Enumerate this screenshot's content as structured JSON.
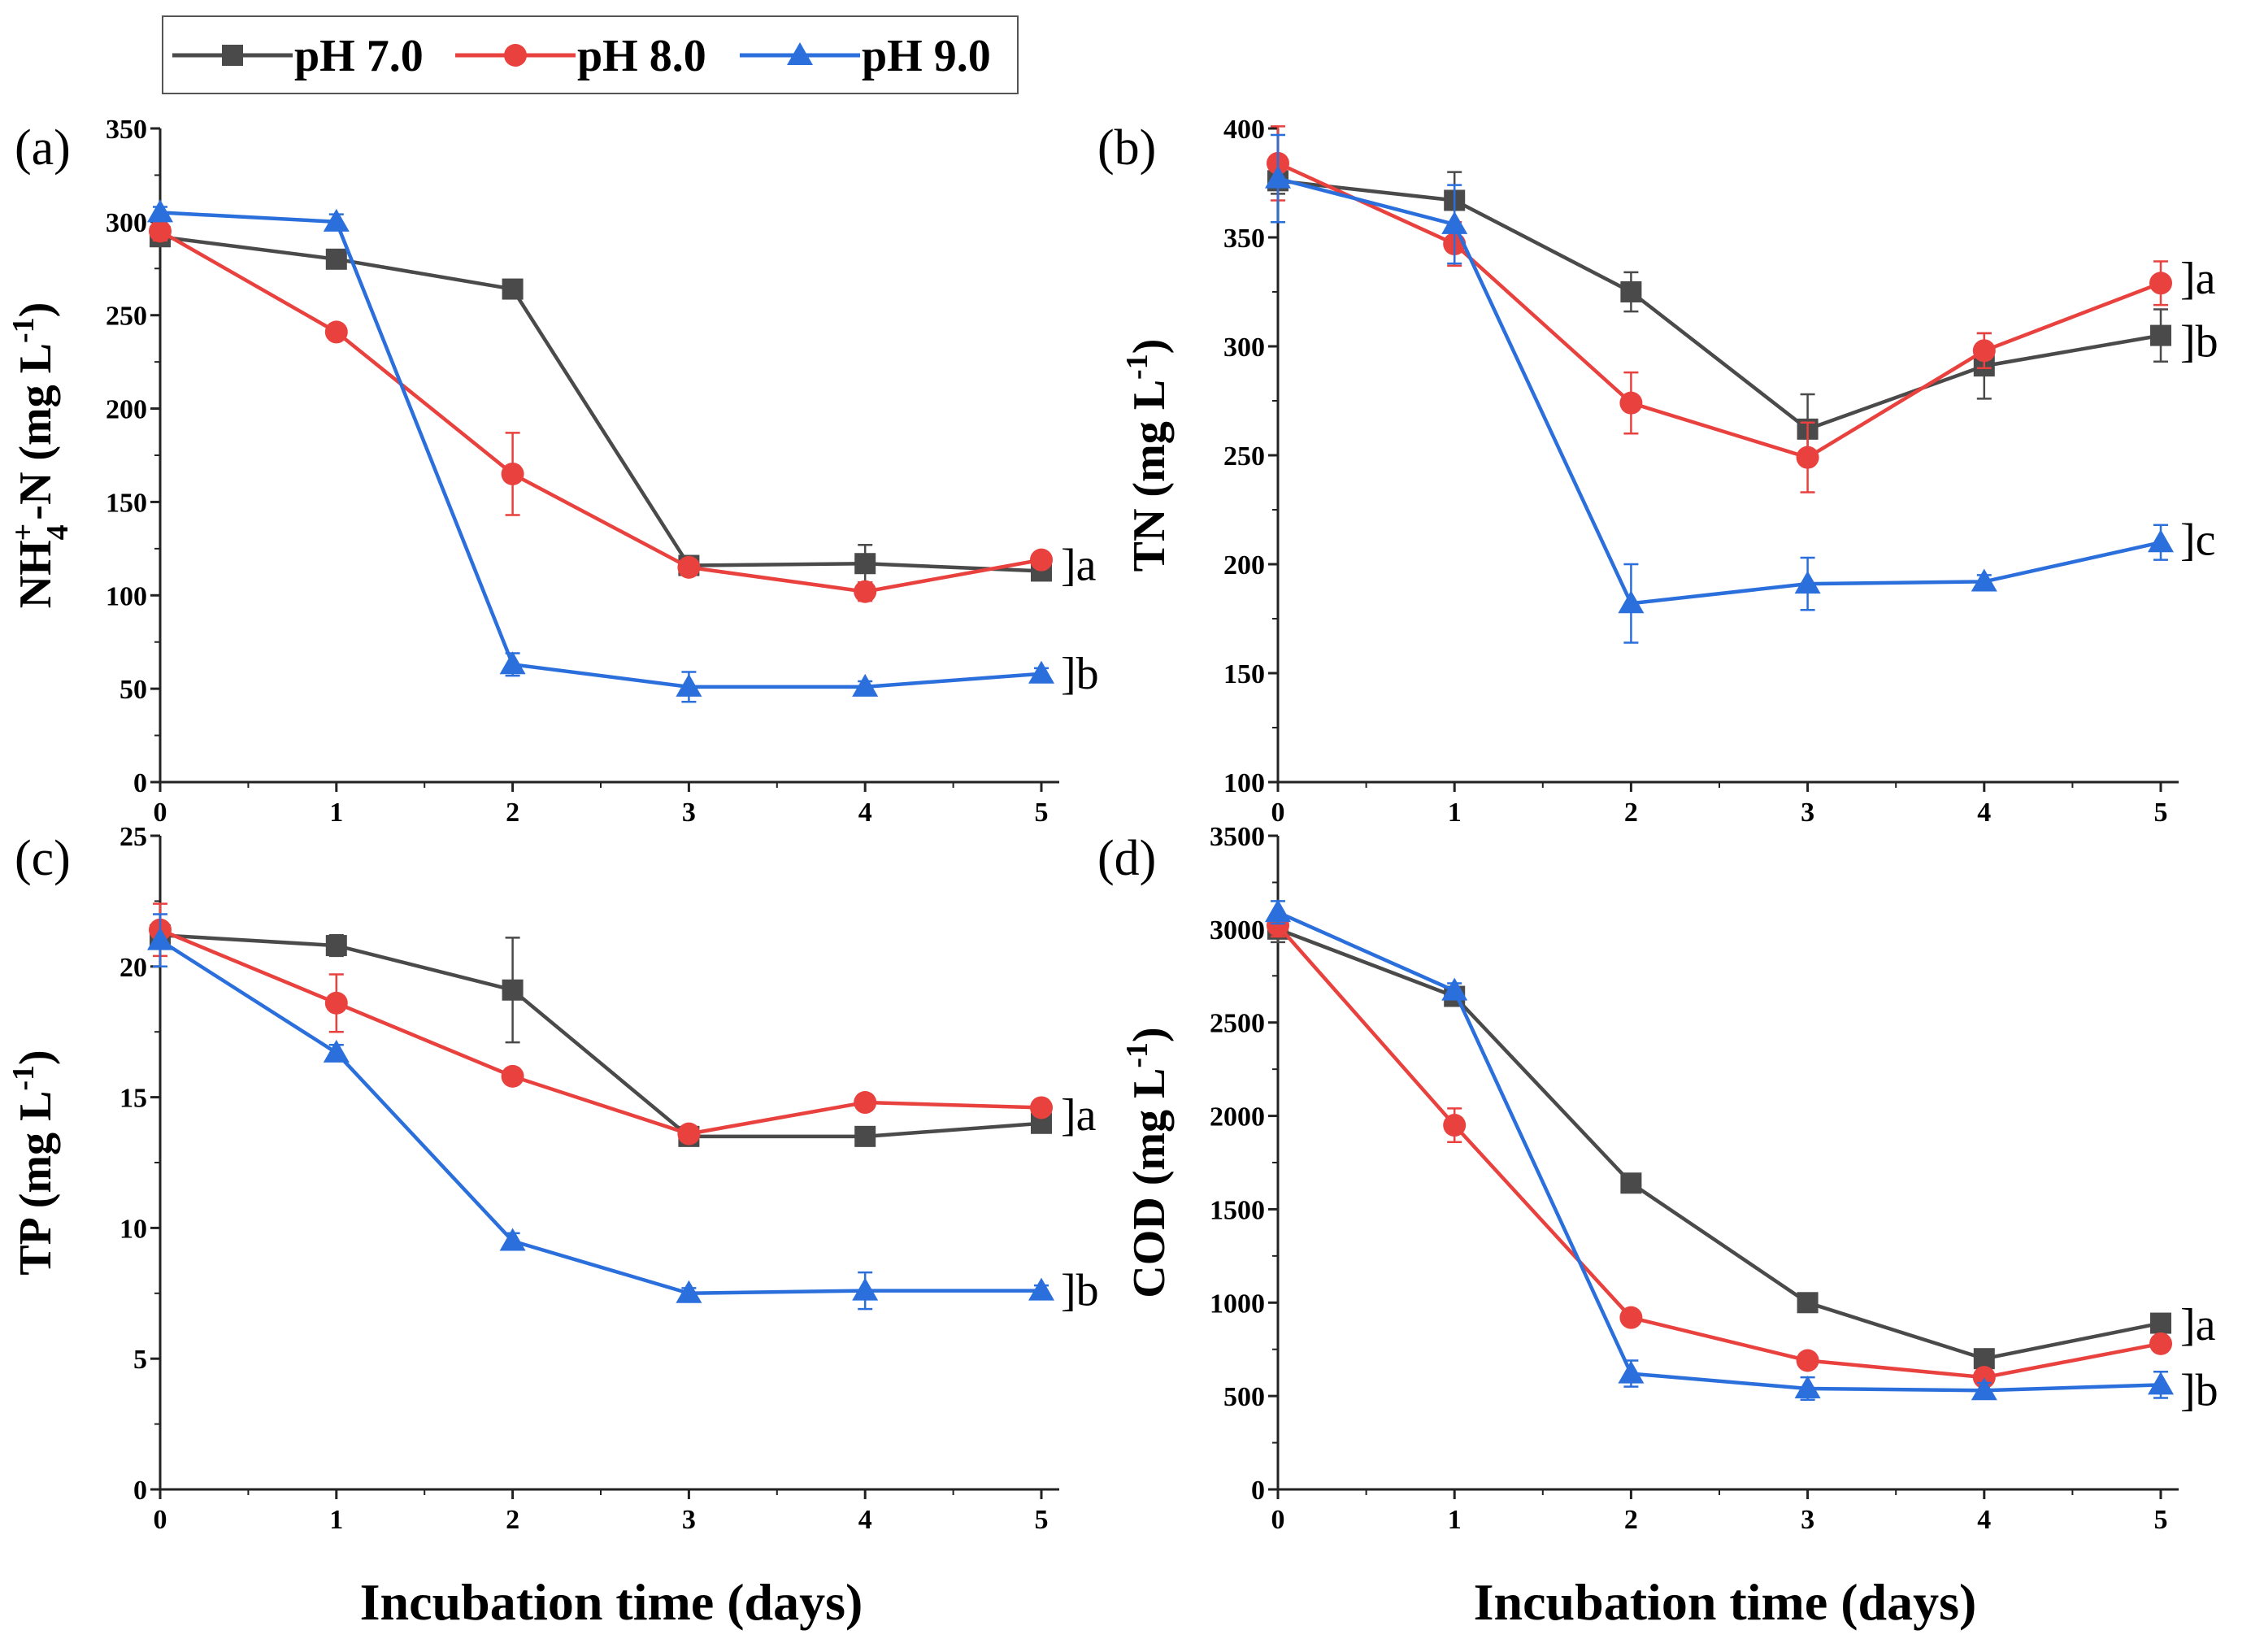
{
  "series_styles": [
    {
      "name": "pH 7.0",
      "color": "#4a4a4a",
      "marker": "square"
    },
    {
      "name": "pH 8.0",
      "color": "#e8413e",
      "marker": "circle"
    },
    {
      "name": "pH 9.0",
      "color": "#2a6fdb",
      "marker": "triangle"
    }
  ],
  "legend": {
    "items": [
      "pH 7.0",
      "pH 8.0",
      "pH 9.0"
    ]
  },
  "xlabel": "Incubation time (days)",
  "chart_data": [
    {
      "type": "line",
      "panel": "(a)",
      "ylabel_main": "NH",
      "ylabel_sub": "4",
      "ylabel_sup": "+",
      "ylabel_rest": "-N (mg L",
      "ylabel_unit_sup": "-1",
      "ylabel_close": ")",
      "x": [
        0,
        1,
        2,
        3,
        4,
        5
      ],
      "xlim": [
        0,
        5
      ],
      "ylim": [
        0,
        350
      ],
      "yticks": [
        0,
        50,
        100,
        150,
        200,
        250,
        300,
        350
      ],
      "xticks": [
        0,
        1,
        2,
        3,
        4,
        5
      ],
      "series": [
        {
          "name": "pH 7.0",
          "values": [
            292,
            280,
            264,
            116,
            117,
            113
          ],
          "errors": [
            5,
            5,
            4,
            5,
            10,
            4
          ]
        },
        {
          "name": "pH 8.0",
          "values": [
            295,
            241,
            165,
            115,
            102,
            119
          ],
          "errors": [
            5,
            4,
            22,
            4,
            5,
            3
          ]
        },
        {
          "name": "pH 9.0",
          "values": [
            305,
            300,
            63,
            51,
            51,
            58
          ],
          "errors": [
            3,
            4,
            6,
            8,
            3,
            3
          ]
        }
      ],
      "significance": [
        {
          "text": "]a",
          "y": 116
        },
        {
          "text": "]b",
          "y": 58
        }
      ]
    },
    {
      "type": "line",
      "panel": "(b)",
      "ylabel_main": "TN (mg L",
      "ylabel_unit_sup": "-1",
      "ylabel_close": ")",
      "x": [
        0,
        1,
        2,
        3,
        4,
        5
      ],
      "xlim": [
        0,
        5
      ],
      "ylim": [
        100,
        400
      ],
      "yticks": [
        100,
        150,
        200,
        250,
        300,
        350,
        400
      ],
      "xticks": [
        0,
        1,
        2,
        3,
        4,
        5
      ],
      "series": [
        {
          "name": "pH 7.0",
          "values": [
            376,
            367,
            325,
            262,
            291,
            305
          ],
          "errors": [
            6,
            13,
            9,
            16,
            15,
            12
          ]
        },
        {
          "name": "pH 8.0",
          "values": [
            384,
            347,
            274,
            249,
            298,
            329
          ],
          "errors": [
            17,
            10,
            14,
            16,
            8,
            10
          ]
        },
        {
          "name": "pH 9.0",
          "values": [
            377,
            356,
            182,
            191,
            192,
            210
          ],
          "errors": [
            20,
            18,
            18,
            12,
            3,
            8
          ]
        }
      ],
      "significance": [
        {
          "text": "]a",
          "y": 331
        },
        {
          "text": "]b",
          "y": 302
        },
        {
          "text": "]c",
          "y": 211
        }
      ]
    },
    {
      "type": "line",
      "panel": "(c)",
      "ylabel_main": "TP (mg L",
      "ylabel_unit_sup": "-1",
      "ylabel_close": ")",
      "x": [
        0,
        1,
        2,
        3,
        4,
        5
      ],
      "xlim": [
        0,
        5
      ],
      "ylim": [
        0,
        25
      ],
      "yticks": [
        0,
        5,
        10,
        15,
        20,
        25
      ],
      "xticks": [
        0,
        1,
        2,
        3,
        4,
        5
      ],
      "series": [
        {
          "name": "pH 7.0",
          "values": [
            21.2,
            20.8,
            19.1,
            13.5,
            13.5,
            14.0
          ],
          "errors": [
            0.4,
            0.4,
            2.0,
            0.2,
            0.2,
            0.3
          ]
        },
        {
          "name": "pH 8.0",
          "values": [
            21.4,
            18.6,
            15.8,
            13.6,
            14.8,
            14.6
          ],
          "errors": [
            1.0,
            1.1,
            0.3,
            0.3,
            0.3,
            0.3
          ]
        },
        {
          "name": "pH 9.0",
          "values": [
            21.0,
            16.7,
            9.5,
            7.5,
            7.6,
            7.6
          ],
          "errors": [
            1.0,
            0.3,
            0.3,
            0.2,
            0.7,
            0.2
          ]
        }
      ],
      "significance": [
        {
          "text": "]a",
          "y": 14.3
        },
        {
          "text": "]b",
          "y": 7.6
        }
      ]
    },
    {
      "type": "line",
      "panel": "(d)",
      "ylabel_main": "COD (mg L",
      "ylabel_unit_sup": "-1",
      "ylabel_close": ")",
      "x": [
        0,
        1,
        2,
        3,
        4,
        5
      ],
      "xlim": [
        0,
        5
      ],
      "ylim": [
        0,
        3500
      ],
      "yticks": [
        0,
        500,
        1000,
        1500,
        2000,
        2500,
        3000,
        3500
      ],
      "xticks": [
        0,
        1,
        2,
        3,
        4,
        5
      ],
      "series": [
        {
          "name": "pH 7.0",
          "values": [
            3000,
            2640,
            1640,
            1000,
            700,
            890
          ],
          "errors": [
            70,
            40,
            30,
            30,
            30,
            30
          ]
        },
        {
          "name": "pH 8.0",
          "values": [
            3020,
            1950,
            920,
            690,
            600,
            780
          ],
          "errors": [
            60,
            90,
            40,
            30,
            30,
            30
          ]
        },
        {
          "name": "pH 9.0",
          "values": [
            3090,
            2670,
            620,
            540,
            530,
            560
          ],
          "errors": [
            60,
            40,
            70,
            60,
            40,
            70
          ]
        }
      ],
      "significance": [
        {
          "text": "]a",
          "y": 880
        },
        {
          "text": "]b",
          "y": 530
        }
      ]
    }
  ]
}
